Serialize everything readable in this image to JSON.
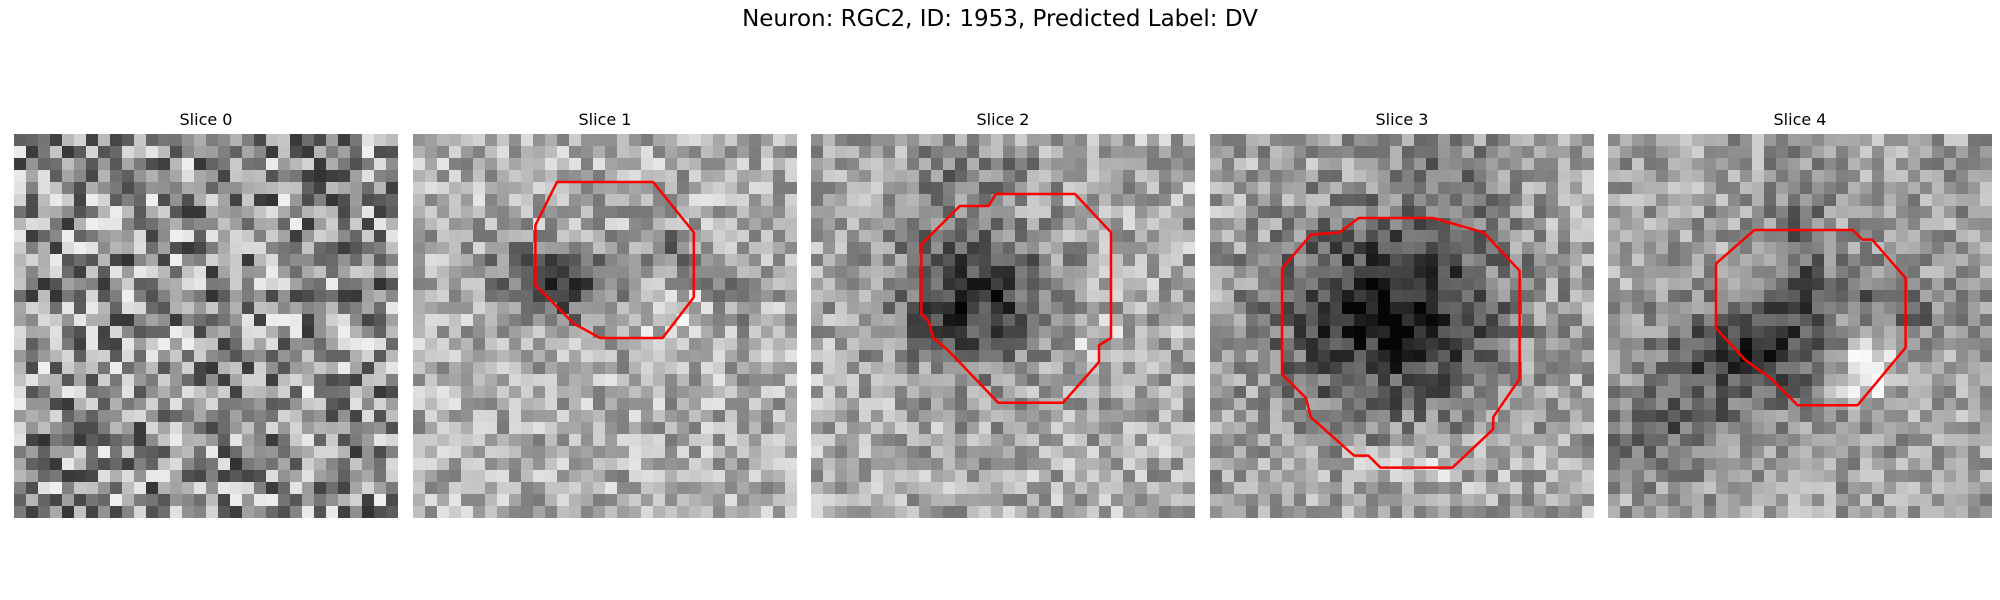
{
  "figure": {
    "title": "Neuron: RGC2, ID: 1953, Predicted Label: DV"
  },
  "panels": [
    {
      "title": "Slice 0",
      "image_description": "grayscale noise patch",
      "has_outline": false
    },
    {
      "title": "Slice 1",
      "image_description": "grayscale microscopy patch with dark elongated cell",
      "has_outline": true
    },
    {
      "title": "Slice 2",
      "image_description": "grayscale microscopy patch with dark round cell",
      "has_outline": true
    },
    {
      "title": "Slice 3",
      "image_description": "grayscale microscopy patch with large dark round cell",
      "has_outline": true
    },
    {
      "title": "Slice 4",
      "image_description": "grayscale microscopy patch with dark cell and bright spot",
      "has_outline": true
    }
  ],
  "colors": {
    "outline": "#ff0000",
    "background": "#ffffff"
  }
}
